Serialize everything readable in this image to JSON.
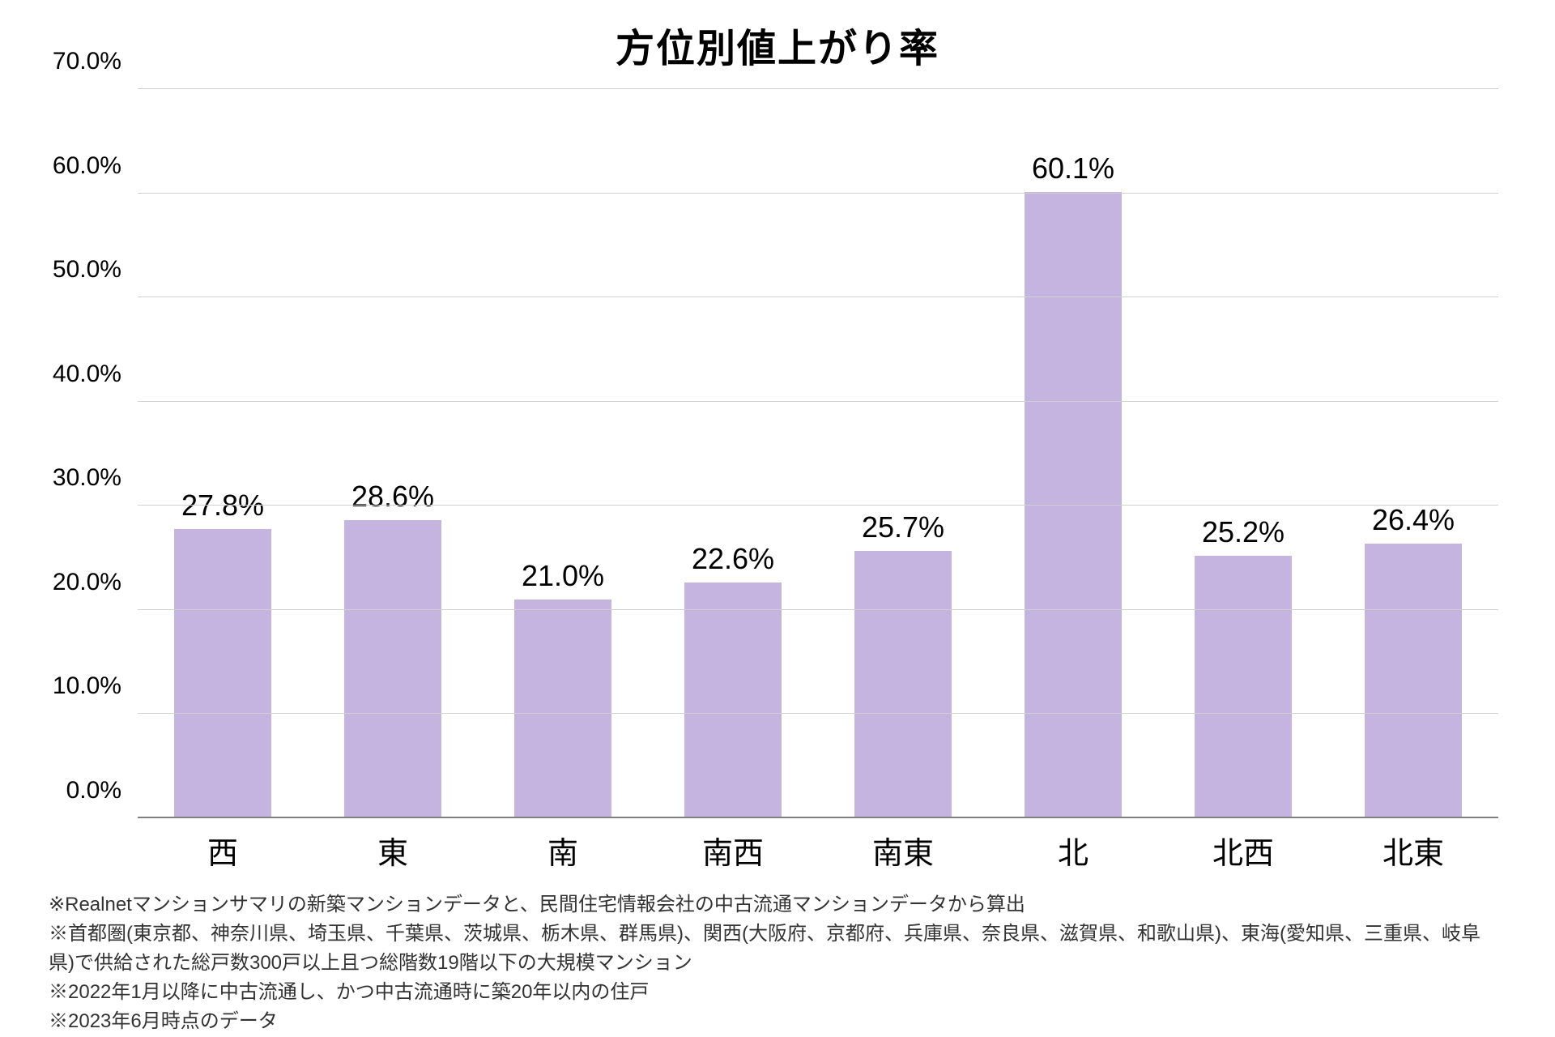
{
  "chart": {
    "type": "bar",
    "title": "方位別値上がり率",
    "title_fontsize": 48,
    "title_fontweight": 700,
    "title_color": "#000000",
    "background_color": "#ffffff",
    "categories": [
      "西",
      "東",
      "南",
      "南西",
      "南東",
      "北",
      "北西",
      "北東"
    ],
    "values": [
      27.8,
      28.6,
      21.0,
      22.6,
      25.7,
      60.1,
      25.2,
      26.4
    ],
    "value_labels": [
      "27.8%",
      "28.6%",
      "21.0%",
      "22.6%",
      "25.7%",
      "60.1%",
      "25.2%",
      "26.4%"
    ],
    "bar_color": "#c5b4e0",
    "bar_width_ratio": 0.57,
    "value_label_fontsize": 36,
    "value_label_color": "#000000",
    "x_label_fontsize": 38,
    "x_label_color": "#000000",
    "y_label_fontsize": 30,
    "y_label_color": "#000000",
    "ylim": [
      0,
      70
    ],
    "ytick_step": 10,
    "ytick_positions": [
      0,
      10,
      20,
      30,
      40,
      50,
      60,
      70
    ],
    "ytick_labels": [
      "0.0%",
      "10.0%",
      "20.0%",
      "30.0%",
      "40.0%",
      "50.0%",
      "60.0%",
      "70.0%"
    ],
    "grid_color": "#d0d0d0",
    "baseline_color": "#808080",
    "grid_on": true
  },
  "footnotes": [
    "※Realnetマンションサマリの新築マンションデータと、民間住宅情報会社の中古流通マンションデータから算出",
    "※首都圏(東京都、神奈川県、埼玉県、千葉県、茨城県、栃木県、群馬県)、関西(大阪府、京都府、兵庫県、奈良県、滋賀県、和歌山県)、東海(愛知県、三重県、岐阜県)で供給された総戸数300戸以上且つ総階数19階以下の大規模マンション",
    "※2022年1月以降に中古流通し、かつ中古流通時に築20年以内の住戸",
    "※2023年6月時点のデータ"
  ],
  "footnote_fontsize": 24,
  "footnote_color": "#333333"
}
